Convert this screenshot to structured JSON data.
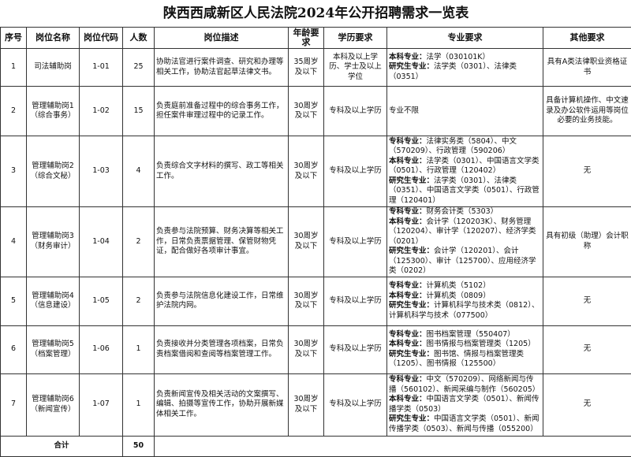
{
  "title": "陕西西咸新区人民法院2024年公开招聘需求一览表",
  "headers": [
    "序号",
    "岗位名称",
    "岗位代码",
    "人数",
    "岗位描述",
    "年龄要求",
    "学历要求",
    "专业要求",
    "其他要求"
  ],
  "rows": [
    {
      "no": "1",
      "name": "司法辅助岗",
      "code": "1-01",
      "count": "25",
      "desc": "协助法官进行案件调查、研究和办理等相关工作，协助法官起草法律文书。",
      "age": "35周岁及以下",
      "edu": "本科及以上学历、学士及以上学位",
      "major": [
        {
          "label": "本科专业：",
          "text": "法学（030101K）"
        },
        {
          "label": "研究生专业：",
          "text": "法学类（0301）、法律类（0351）"
        }
      ],
      "other": "具有A类法律职业资格证书"
    },
    {
      "no": "2",
      "name": "管理辅助岗1（综合事务）",
      "code": "1-02",
      "count": "15",
      "desc": "负责庭前准备过程中的综合事务工作，担任案件审理过程中的记录工作。",
      "age": "30周岁及以下",
      "edu": "专科及以上学历",
      "major": [
        {
          "label": "",
          "text": "专业不限"
        }
      ],
      "other": "具备计算机操作、中文速录及办公软件运用等岗位必要的业务技能。"
    },
    {
      "no": "3",
      "name": "管理辅助岗2（综合文秘）",
      "code": "1-03",
      "count": "4",
      "desc": "负责综合文字材料的撰写、政工等相关工作。",
      "age": "30周岁及以下",
      "edu": "专科及以上学历",
      "major": [
        {
          "label": "专科专业：",
          "text": "法律实务类（5804）、中文（570209）、行政管理（590206）"
        },
        {
          "label": "本科专业：",
          "text": "法学类（0301）、中国语言文学类（0501）、行政管理（120402）"
        },
        {
          "label": "研究生专业：",
          "text": "法学类（0301）、法律类（0351）、中国语言文学类（0501）、行政管理（120401）"
        }
      ],
      "other": "无"
    },
    {
      "no": "4",
      "name": "管理辅助岗3（财务审计）",
      "code": "1-04",
      "count": "2",
      "desc": "负责参与法院预算、财务决算等相关工作，日常负责票据管理、保管财物凭证，配合做好各项审计事宜。",
      "age": "30周岁及以下",
      "edu": "专科及以上学历",
      "major": [
        {
          "label": "专科专业：",
          "text": "财务会计类（5303）"
        },
        {
          "label": "本科专业：",
          "text": "会计学（120203K）、财务管理（120204）、审计学（120207）、经济学类（0201）"
        },
        {
          "label": "研究生专业：",
          "text": "会计学（120201）、会计（125300）、审计（125700）、应用经济学类（0202）"
        }
      ],
      "other": "具有初级（助理）会计职称"
    },
    {
      "no": "5",
      "name": "管理辅助岗4（信息建设）",
      "code": "1-05",
      "count": "2",
      "desc": "负责参与法院信息化建设工作，日常维护法院内网。",
      "age": "30周岁及以下",
      "edu": "专科及以上学历",
      "major": [
        {
          "label": "专科专业：",
          "text": "计算机类（5102）"
        },
        {
          "label": "本科专业：",
          "text": "计算机类（0809）"
        },
        {
          "label": "研究生专业：",
          "text": "计算机科学与技术类（0812）、计算机科学与技术（077500）"
        }
      ],
      "other": "无"
    },
    {
      "no": "6",
      "name": "管理辅助岗5（档案管理）",
      "code": "1-06",
      "count": "1",
      "desc": "负责接收并分类管理各项档案，日常负责档案借阅和查阅等档案管理工作。",
      "age": "30周岁及以下",
      "edu": "专科及以上学历",
      "major": [
        {
          "label": "专科专业：",
          "text": "图书档案管理（550407）"
        },
        {
          "label": "本科专业：",
          "text": "图书情报与档案管理类（1205）"
        },
        {
          "label": "研究生专业：",
          "text": "图书馆、情报与档案管理类（1205）、图书情报（125500）"
        }
      ],
      "other": "无"
    },
    {
      "no": "7",
      "name": "管理辅助岗6（新闻宣传）",
      "code": "1-07",
      "count": "1",
      "desc": "负责新闻宣传及相关活动的文案撰写、编辑、拍摄等宣传工作，协助开展新媒体相关工作。",
      "age": "30周岁及以下",
      "edu": "专科及以上学历",
      "major": [
        {
          "label": "专科专业：",
          "text": "中文（570209）、网络新闻与传播（560102）、新闻采编与制作（560205）"
        },
        {
          "label": "本科专业：",
          "text": "中国语言文学类（0501）、新闻传播学类（0503）"
        },
        {
          "label": "研究生专业：",
          "text": "中国语言文学类（0501）、新闻传播学类（0503）、新闻与传播（055200）"
        }
      ],
      "other": "无"
    }
  ],
  "total": {
    "label": "合计",
    "count": "50"
  }
}
